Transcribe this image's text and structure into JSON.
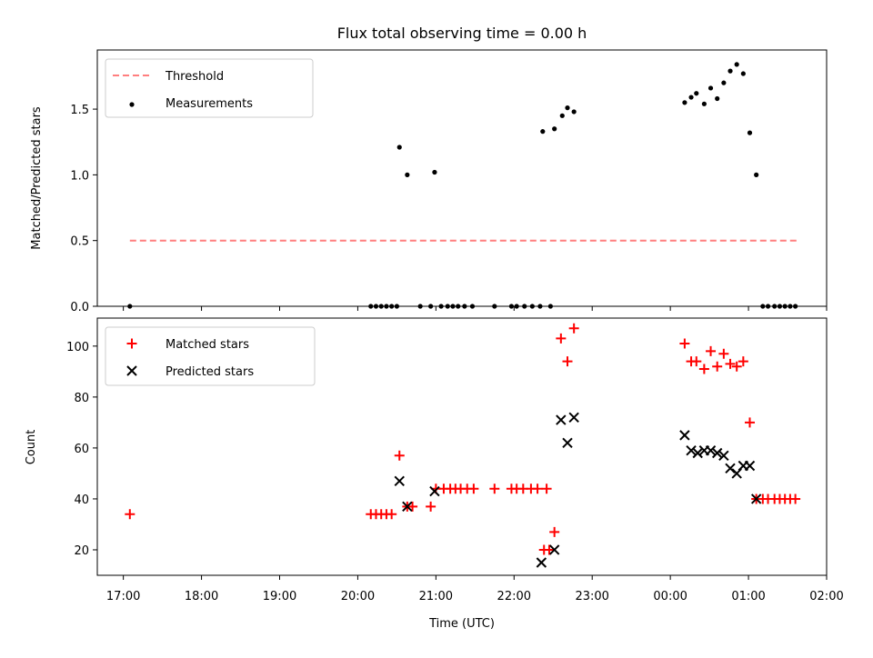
{
  "figure": {
    "title": "Flux total observing time = 0.00 h"
  },
  "chart_data": [
    {
      "type": "scatter",
      "title": "Flux total observing time = 0.00 h",
      "xlabel": "",
      "ylabel": "Matched/Predicted stars",
      "xlim": [
        "16:40",
        "02:00"
      ],
      "ylim": [
        0,
        1.95
      ],
      "yticks": [
        0.0,
        0.5,
        1.0,
        1.5
      ],
      "ytick_labels": [
        "0.0",
        "0.5",
        "1.0",
        "1.5"
      ],
      "grid": false,
      "legend_position": "upper-left",
      "series": [
        {
          "name": "Threshold",
          "kind": "dashed-line",
          "color": "#ff7f7f",
          "points": [
            [
              "17:05",
              0.5
            ],
            [
              "01:37",
              0.5
            ]
          ]
        },
        {
          "name": "Measurements",
          "kind": "dots",
          "color": "#000000",
          "points": [
            [
              "17:05",
              0.0
            ],
            [
              "20:10",
              0.0
            ],
            [
              "20:14",
              0.0
            ],
            [
              "20:18",
              0.0
            ],
            [
              "20:22",
              0.0
            ],
            [
              "20:26",
              0.0
            ],
            [
              "20:30",
              0.0
            ],
            [
              "20:32",
              1.21
            ],
            [
              "20:38",
              1.0
            ],
            [
              "20:48",
              0.0
            ],
            [
              "20:56",
              0.0
            ],
            [
              "20:59",
              1.02
            ],
            [
              "21:04",
              0.0
            ],
            [
              "21:09",
              0.0
            ],
            [
              "21:13",
              0.0
            ],
            [
              "21:17",
              0.0
            ],
            [
              "21:22",
              0.0
            ],
            [
              "21:28",
              0.0
            ],
            [
              "21:45",
              0.0
            ],
            [
              "21:58",
              0.0
            ],
            [
              "22:02",
              0.0
            ],
            [
              "22:08",
              0.0
            ],
            [
              "22:14",
              0.0
            ],
            [
              "22:20",
              0.0
            ],
            [
              "22:22",
              1.33
            ],
            [
              "22:28",
              0.0
            ],
            [
              "22:31",
              1.35
            ],
            [
              "22:37",
              1.45
            ],
            [
              "22:41",
              1.51
            ],
            [
              "22:46",
              1.48
            ],
            [
              "00:11",
              1.55
            ],
            [
              "00:16",
              1.59
            ],
            [
              "00:20",
              1.62
            ],
            [
              "00:26",
              1.54
            ],
            [
              "00:31",
              1.66
            ],
            [
              "00:36",
              1.58
            ],
            [
              "00:41",
              1.7
            ],
            [
              "00:46",
              1.79
            ],
            [
              "00:51",
              1.84
            ],
            [
              "00:56",
              1.77
            ],
            [
              "01:01",
              1.32
            ],
            [
              "01:06",
              1.0
            ],
            [
              "01:11",
              0.0
            ],
            [
              "01:15",
              0.0
            ],
            [
              "01:20",
              0.0
            ],
            [
              "01:24",
              0.0
            ],
            [
              "01:28",
              0.0
            ],
            [
              "01:32",
              0.0
            ],
            [
              "01:36",
              0.0
            ]
          ]
        }
      ]
    },
    {
      "type": "scatter",
      "title": "",
      "xlabel": "Time (UTC)",
      "ylabel": "Count",
      "xlim": [
        "16:40",
        "02:00"
      ],
      "ylim": [
        10,
        111
      ],
      "yticks": [
        20,
        40,
        60,
        80,
        100
      ],
      "ytick_labels": [
        "20",
        "40",
        "60",
        "80",
        "100"
      ],
      "xticks": [
        "17:00",
        "18:00",
        "19:00",
        "20:00",
        "21:00",
        "22:00",
        "23:00",
        "00:00",
        "01:00",
        "02:00"
      ],
      "xtick_labels": [
        "17:00",
        "18:00",
        "19:00",
        "20:00",
        "21:00",
        "22:00",
        "23:00",
        "00:00",
        "01:00",
        "02:00"
      ],
      "grid": false,
      "legend_position": "upper-left",
      "series": [
        {
          "name": "Matched stars",
          "kind": "plus",
          "color": "#ff0000",
          "points": [
            [
              "17:05",
              34
            ],
            [
              "20:10",
              34
            ],
            [
              "20:14",
              34
            ],
            [
              "20:18",
              34
            ],
            [
              "20:22",
              34
            ],
            [
              "20:26",
              34
            ],
            [
              "20:32",
              57
            ],
            [
              "20:38",
              37
            ],
            [
              "20:42",
              37
            ],
            [
              "20:56",
              37
            ],
            [
              "21:00",
              44
            ],
            [
              "21:06",
              44
            ],
            [
              "21:11",
              44
            ],
            [
              "21:15",
              44
            ],
            [
              "21:19",
              44
            ],
            [
              "21:24",
              44
            ],
            [
              "21:29",
              44
            ],
            [
              "21:45",
              44
            ],
            [
              "21:58",
              44
            ],
            [
              "22:02",
              44
            ],
            [
              "22:07",
              44
            ],
            [
              "22:13",
              44
            ],
            [
              "22:18",
              44
            ],
            [
              "22:25",
              44
            ],
            [
              "22:23",
              20
            ],
            [
              "22:27",
              20
            ],
            [
              "22:31",
              27
            ],
            [
              "22:36",
              103
            ],
            [
              "22:41",
              94
            ],
            [
              "22:46",
              107
            ],
            [
              "00:11",
              101
            ],
            [
              "00:16",
              94
            ],
            [
              "00:20",
              94
            ],
            [
              "00:26",
              91
            ],
            [
              "00:31",
              98
            ],
            [
              "00:36",
              92
            ],
            [
              "00:41",
              97
            ],
            [
              "00:46",
              93
            ],
            [
              "00:51",
              92
            ],
            [
              "00:56",
              94
            ],
            [
              "01:01",
              70
            ],
            [
              "01:06",
              40
            ],
            [
              "01:11",
              40
            ],
            [
              "01:15",
              40
            ],
            [
              "01:20",
              40
            ],
            [
              "01:24",
              40
            ],
            [
              "01:28",
              40
            ],
            [
              "01:32",
              40
            ],
            [
              "01:36",
              40
            ]
          ]
        },
        {
          "name": "Predicted stars",
          "kind": "x",
          "color": "#000000",
          "points": [
            [
              "22:21",
              15
            ],
            [
              "22:31",
              20
            ],
            [
              "20:32",
              47
            ],
            [
              "20:38",
              37
            ],
            [
              "20:59",
              43
            ],
            [
              "22:36",
              71
            ],
            [
              "22:41",
              62
            ],
            [
              "22:46",
              72
            ],
            [
              "00:11",
              65
            ],
            [
              "00:16",
              59
            ],
            [
              "00:21",
              58
            ],
            [
              "00:26",
              59
            ],
            [
              "00:31",
              59
            ],
            [
              "00:36",
              58
            ],
            [
              "00:41",
              57
            ],
            [
              "00:46",
              52
            ],
            [
              "00:51",
              50
            ],
            [
              "00:56",
              53
            ],
            [
              "01:01",
              53
            ],
            [
              "01:06",
              40
            ]
          ]
        }
      ]
    }
  ]
}
